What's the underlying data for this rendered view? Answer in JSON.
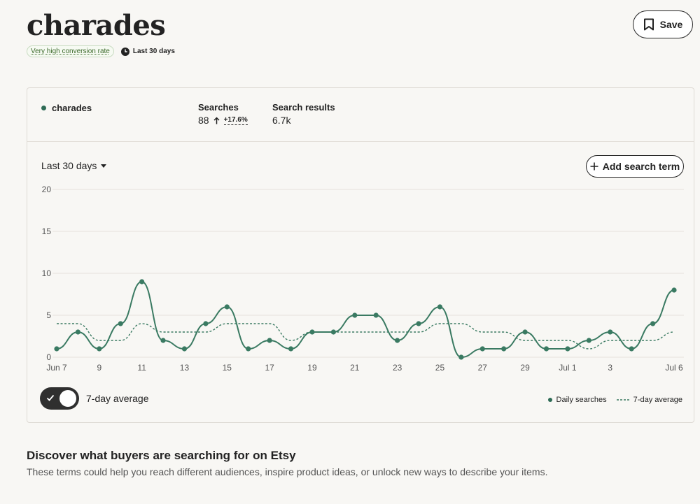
{
  "header": {
    "title": "charades",
    "conversion_badge": "Very high conversion rate",
    "period": "Last 30 days",
    "save_label": "Save"
  },
  "summary": {
    "term": "charades",
    "searches_label": "Searches",
    "searches_value": "88",
    "searches_change": "+17.6%",
    "results_label": "Search results",
    "results_value": "6.7k"
  },
  "controls": {
    "range": "Last 30 days",
    "add_term_label": "Add search term",
    "toggle_label": "7-day average",
    "toggle_on": true
  },
  "colors": {
    "series": "#3a7a62",
    "accent": "#2e6b55"
  },
  "chart_data": {
    "type": "line",
    "x": [
      "Jun 7",
      "Jun 8",
      "Jun 9",
      "Jun 10",
      "Jun 11",
      "Jun 12",
      "Jun 13",
      "Jun 14",
      "Jun 15",
      "Jun 16",
      "Jun 17",
      "Jun 18",
      "Jun 19",
      "Jun 20",
      "Jun 21",
      "Jun 22",
      "Jun 23",
      "Jun 24",
      "Jun 25",
      "Jun 26",
      "Jun 27",
      "Jun 28",
      "Jun 29",
      "Jun 30",
      "Jul 1",
      "Jul 2",
      "Jul 3",
      "Jul 4",
      "Jul 5",
      "Jul 6"
    ],
    "x_tick_labels": [
      "Jun 7",
      "",
      "9",
      "",
      "11",
      "",
      "13",
      "",
      "15",
      "",
      "17",
      "",
      "19",
      "",
      "21",
      "",
      "23",
      "",
      "25",
      "",
      "27",
      "",
      "29",
      "",
      "Jul 1",
      "",
      "3",
      "",
      "",
      "Jul 6"
    ],
    "series": [
      {
        "name": "Daily searches",
        "style": "solid-with-markers",
        "values": [
          1,
          3,
          1,
          4,
          9,
          2,
          1,
          4,
          6,
          1,
          2,
          1,
          3,
          3,
          5,
          5,
          2,
          4,
          6,
          0,
          1,
          1,
          3,
          1,
          1,
          2,
          3,
          1,
          4,
          8
        ]
      },
      {
        "name": "7-day average",
        "style": "dashed",
        "values": [
          4,
          4,
          2,
          2,
          4,
          3,
          3,
          3,
          4,
          4,
          4,
          2,
          3,
          3,
          3,
          3,
          3,
          3,
          4,
          4,
          3,
          3,
          2,
          2,
          2,
          1,
          2,
          2,
          2,
          3
        ]
      }
    ],
    "y_ticks": [
      "0",
      "5",
      "10",
      "15",
      "20"
    ],
    "ylim": [
      0,
      20
    ],
    "grid": true,
    "legend": "bottom-right"
  },
  "discover": {
    "title": "Discover what buyers are searching for on Etsy",
    "subtitle": "These terms could help you reach different audiences, inspire product ideas, or unlock new ways to describe your items."
  }
}
